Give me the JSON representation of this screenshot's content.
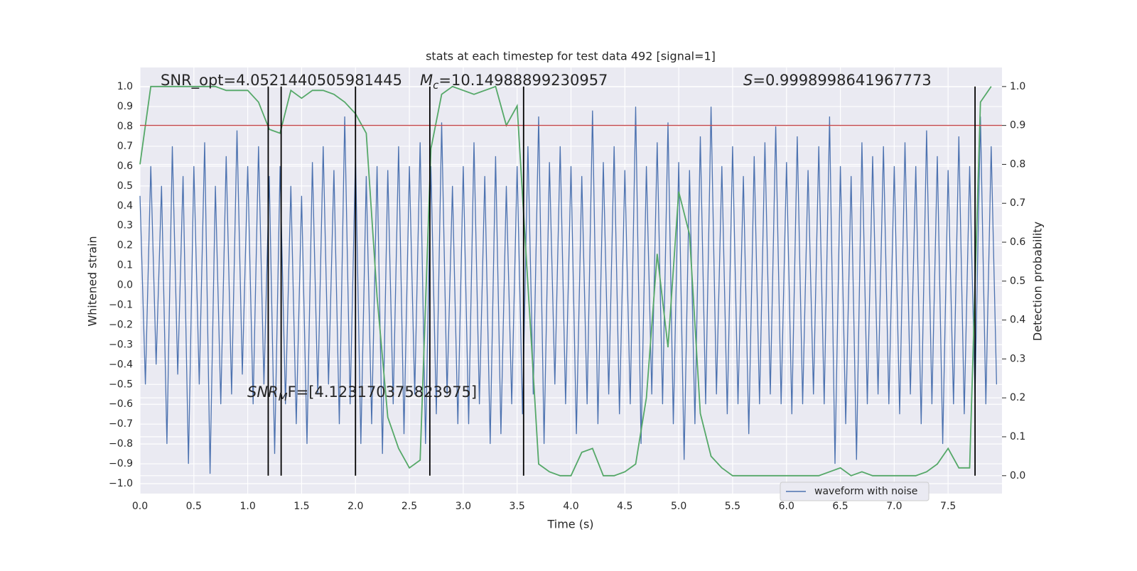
{
  "chart_data": {
    "type": "line",
    "title": "stats at each timestep for test data 492 [signal=1]",
    "xlabel": "Time (s)",
    "ylabel": "Whitened strain",
    "y2label": "Detection probability",
    "xlim": [
      0,
      8
    ],
    "ylim": [
      -1.05,
      1.097
    ],
    "y2lim": [
      -0.046,
      1.049
    ],
    "xticks": [
      {
        "value": 0,
        "label": "0.0"
      },
      0.5,
      {
        "value": 1,
        "label": "1.0"
      },
      1.5,
      {
        "value": 2,
        "label": "2.0"
      },
      2.5,
      {
        "value": 3,
        "label": "3.0"
      },
      3.5,
      {
        "value": 4,
        "label": "4.0"
      },
      4.5,
      {
        "value": 5,
        "label": "5.0"
      },
      5.5,
      {
        "value": 6,
        "label": "6.0"
      },
      6.5,
      {
        "value": 7,
        "label": "7.0"
      },
      7.5
    ],
    "yticks": [
      {
        "value": -1,
        "label": "−1.0"
      },
      {
        "value": -0.9,
        "label": "−0.9"
      },
      {
        "value": -0.8,
        "label": "−0.8"
      },
      {
        "value": -0.7,
        "label": "−0.7"
      },
      {
        "value": -0.6,
        "label": "−0.6"
      },
      {
        "value": -0.5,
        "label": "−0.5"
      },
      {
        "value": -0.4,
        "label": "−0.4"
      },
      {
        "value": -0.3,
        "label": "−0.3"
      },
      {
        "value": -0.2,
        "label": "−0.2"
      },
      {
        "value": -0.1,
        "label": "−0.1"
      },
      {
        "value": 0,
        "label": "0.0"
      },
      0.1,
      0.2,
      0.3,
      0.4,
      0.5,
      0.6,
      0.7,
      0.8,
      0.9,
      {
        "value": 1,
        "label": "1.0"
      }
    ],
    "y2ticks": [
      {
        "value": 0,
        "label": "0.0"
      },
      0.1,
      0.2,
      0.3,
      0.4,
      0.5,
      0.6,
      0.7,
      0.8,
      0.9,
      {
        "value": 1,
        "label": "1.0"
      }
    ],
    "grid": true,
    "legend": "lower right",
    "series": [
      {
        "name": "waveform with noise",
        "color": "#4c72b0",
        "axis": "y",
        "x": [
          0,
          0.05,
          0.1,
          0.15,
          0.2,
          0.25,
          0.3,
          0.35,
          0.4,
          0.45,
          0.5,
          0.55,
          0.6,
          0.65,
          0.7,
          0.75,
          0.8,
          0.85,
          0.9,
          0.95,
          1,
          1.05,
          1.1,
          1.15,
          1.2,
          1.25,
          1.3,
          1.35,
          1.4,
          1.45,
          1.5,
          1.55,
          1.6,
          1.65,
          1.7,
          1.75,
          1.8,
          1.85,
          1.9,
          1.95,
          2,
          2.05,
          2.1,
          2.15,
          2.2,
          2.25,
          2.3,
          2.35,
          2.4,
          2.45,
          2.5,
          2.55,
          2.6,
          2.65,
          2.7,
          2.75,
          2.8,
          2.85,
          2.9,
          2.95,
          3,
          3.05,
          3.1,
          3.15,
          3.2,
          3.25,
          3.3,
          3.35,
          3.4,
          3.45,
          3.5,
          3.55,
          3.6,
          3.65,
          3.7,
          3.75,
          3.8,
          3.85,
          3.9,
          3.95,
          4,
          4.05,
          4.1,
          4.15,
          4.2,
          4.25,
          4.3,
          4.35,
          4.4,
          4.45,
          4.5,
          4.55,
          4.6,
          4.65,
          4.7,
          4.75,
          4.8,
          4.85,
          4.9,
          4.95,
          5,
          5.05,
          5.1,
          5.15,
          5.2,
          5.25,
          5.3,
          5.35,
          5.4,
          5.45,
          5.5,
          5.55,
          5.6,
          5.65,
          5.7,
          5.75,
          5.8,
          5.85,
          5.9,
          5.95,
          6,
          6.05,
          6.1,
          6.15,
          6.2,
          6.25,
          6.3,
          6.35,
          6.4,
          6.45,
          6.5,
          6.55,
          6.6,
          6.65,
          6.7,
          6.75,
          6.8,
          6.85,
          6.9,
          6.95,
          7,
          7.05,
          7.1,
          7.15,
          7.2,
          7.25,
          7.3,
          7.35,
          7.4,
          7.45,
          7.5,
          7.55,
          7.6,
          7.65,
          7.7,
          7.75,
          7.8,
          7.85,
          7.9,
          7.95
        ],
        "values": [
          0.45,
          -0.5,
          0.6,
          -0.4,
          0.5,
          -0.8,
          0.7,
          -0.45,
          0.55,
          -0.9,
          0.6,
          -0.5,
          0.72,
          -0.95,
          0.5,
          -0.6,
          0.65,
          -0.55,
          0.78,
          -0.45,
          0.6,
          -0.6,
          0.7,
          -0.5,
          0.55,
          -0.85,
          0.6,
          -0.6,
          0.5,
          -0.7,
          0.45,
          -0.8,
          0.62,
          -0.55,
          0.7,
          -0.5,
          0.58,
          -0.7,
          0.85,
          -0.6,
          0.65,
          -0.8,
          0.55,
          -0.7,
          0.6,
          -0.85,
          0.58,
          -0.6,
          0.7,
          -0.75,
          0.6,
          -0.55,
          0.72,
          -0.8,
          0.6,
          -0.65,
          0.82,
          -0.55,
          0.5,
          -0.7,
          0.6,
          -0.7,
          0.72,
          -0.6,
          0.55,
          -0.8,
          0.65,
          -0.75,
          0.5,
          -0.6,
          0.6,
          -0.65,
          0.7,
          -0.55,
          0.85,
          -0.8,
          0.62,
          -0.5,
          0.7,
          -0.6,
          0.6,
          -0.75,
          0.55,
          -0.6,
          0.88,
          -0.7,
          0.62,
          -0.55,
          0.7,
          -0.65,
          0.58,
          -0.6,
          0.9,
          -0.8,
          0.6,
          -0.55,
          0.72,
          -0.6,
          0.82,
          -0.7,
          0.62,
          -0.88,
          0.58,
          -0.7,
          0.75,
          -0.6,
          0.9,
          -0.55,
          0.6,
          -0.65,
          0.7,
          -0.6,
          0.55,
          -0.75,
          0.65,
          -0.6,
          0.72,
          -0.55,
          0.8,
          -0.6,
          0.62,
          -0.65,
          0.75,
          -0.6,
          0.58,
          -0.55,
          0.7,
          -0.6,
          0.85,
          -0.9,
          0.6,
          -0.7,
          0.55,
          -0.88,
          0.72,
          -0.6,
          0.65,
          -0.55,
          0.7,
          -0.6,
          0.6,
          -0.65,
          0.72,
          -0.55,
          0.6,
          -0.7,
          0.78,
          -0.6,
          0.65,
          -0.8,
          0.58,
          -0.6,
          0.75,
          -0.65,
          0.6,
          -0.55,
          0.85,
          -0.6,
          0.7,
          -0.5
        ]
      },
      {
        "color": "#55a868",
        "axis": "y2",
        "x": [
          0,
          0.1,
          0.2,
          0.3,
          0.4,
          0.5,
          0.6,
          0.7,
          0.8,
          0.9,
          1,
          1.1,
          1.2,
          1.3,
          1.4,
          1.5,
          1.6,
          1.7,
          1.8,
          1.9,
          2,
          2.1,
          2.2,
          2.3,
          2.4,
          2.5,
          2.6,
          2.7,
          2.8,
          2.9,
          3,
          3.1,
          3.2,
          3.3,
          3.4,
          3.5,
          3.6,
          3.7,
          3.8,
          3.9,
          4,
          4.1,
          4.2,
          4.3,
          4.4,
          4.5,
          4.6,
          4.7,
          4.8,
          4.9,
          5,
          5.1,
          5.2,
          5.3,
          5.4,
          5.5,
          5.6,
          5.7,
          5.8,
          5.9,
          6,
          6.1,
          6.2,
          6.3,
          6.4,
          6.5,
          6.6,
          6.7,
          6.8,
          6.9,
          7,
          7.1,
          7.2,
          7.3,
          7.4,
          7.5,
          7.6,
          7.7,
          7.8,
          7.9
        ],
        "values": [
          0.8,
          1,
          1,
          1,
          1,
          1,
          1,
          1,
          0.99,
          0.99,
          0.99,
          0.96,
          0.89,
          0.88,
          0.99,
          0.97,
          0.99,
          0.99,
          0.98,
          0.96,
          0.93,
          0.88,
          0.46,
          0.15,
          0.07,
          0.02,
          0.04,
          0.84,
          0.98,
          1,
          0.99,
          0.98,
          0.99,
          1,
          0.9,
          0.95,
          0.49,
          0.03,
          0.01,
          0,
          0,
          0.06,
          0.07,
          0,
          0,
          0.01,
          0.03,
          0.2,
          0.57,
          0.33,
          0.73,
          0.62,
          0.16,
          0.05,
          0.02,
          0,
          0,
          0,
          0,
          0,
          0,
          0,
          0,
          0,
          0.01,
          0.02,
          0,
          0.01,
          0,
          0,
          0,
          0,
          0,
          0.01,
          0.03,
          0.07,
          0.02,
          0.02,
          0.96,
          1
        ]
      }
    ],
    "vlines": {
      "x": [
        1.19,
        1.31,
        2.0,
        2.69,
        3.56,
        7.75
      ],
      "ymin": 0,
      "ymax": 1,
      "axis": "y2",
      "color": "#000000"
    },
    "hline": {
      "y": 0.9,
      "axis": "y2",
      "color": "#c44e52"
    },
    "annotations": {
      "snr_opt": "SNR_opt=4.0521440505981445",
      "mc": {
        "symbol": "M",
        "subscript": "c",
        "text": "=10.14988899230957"
      },
      "s": {
        "symbol": "S",
        "text": "=0.9998998641967773"
      },
      "snr_mf": {
        "symbol": "SNR",
        "subscript": "M",
        "text": "F=[4.123170375823975]"
      }
    }
  }
}
